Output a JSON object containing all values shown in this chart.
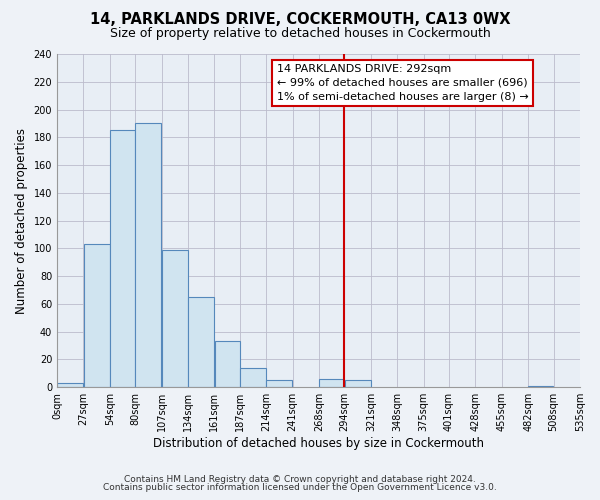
{
  "title": "14, PARKLANDS DRIVE, COCKERMOUTH, CA13 0WX",
  "subtitle": "Size of property relative to detached houses in Cockermouth",
  "xlabel": "Distribution of detached houses by size in Cockermouth",
  "ylabel": "Number of detached properties",
  "footnote1": "Contains HM Land Registry data © Crown copyright and database right 2024.",
  "footnote2": "Contains public sector information licensed under the Open Government Licence v3.0.",
  "bar_edges": [
    0,
    27,
    54,
    80,
    107,
    134,
    161,
    187,
    214,
    241,
    268,
    294,
    321,
    348,
    375,
    401,
    428,
    455,
    482,
    508,
    535
  ],
  "bar_heights": [
    3,
    103,
    185,
    190,
    99,
    65,
    33,
    14,
    5,
    0,
    6,
    5,
    0,
    0,
    0,
    0,
    0,
    0,
    1,
    0
  ],
  "bar_color": "#d0e4f0",
  "bar_edge_color": "#5588bb",
  "vline_x": 294,
  "vline_color": "#cc0000",
  "annotation_line1": "14 PARKLANDS DRIVE: 292sqm",
  "annotation_line2": "← 99% of detached houses are smaller (696)",
  "annotation_line3": "1% of semi-detached houses are larger (8) →",
  "ylim": [
    0,
    240
  ],
  "xlim": [
    0,
    535
  ],
  "tick_labels": [
    "0sqm",
    "27sqm",
    "54sqm",
    "80sqm",
    "107sqm",
    "134sqm",
    "161sqm",
    "187sqm",
    "214sqm",
    "241sqm",
    "268sqm",
    "294sqm",
    "321sqm",
    "348sqm",
    "375sqm",
    "401sqm",
    "428sqm",
    "455sqm",
    "482sqm",
    "508sqm",
    "535sqm"
  ],
  "tick_positions": [
    0,
    27,
    54,
    80,
    107,
    134,
    161,
    187,
    214,
    241,
    268,
    294,
    321,
    348,
    375,
    401,
    428,
    455,
    482,
    508,
    535
  ],
  "title_fontsize": 10.5,
  "subtitle_fontsize": 9,
  "axis_label_fontsize": 8.5,
  "tick_fontsize": 7,
  "annotation_fontsize": 8,
  "footnote_fontsize": 6.5,
  "background_color": "#eef2f7",
  "plot_background_color": "#e8eef5"
}
